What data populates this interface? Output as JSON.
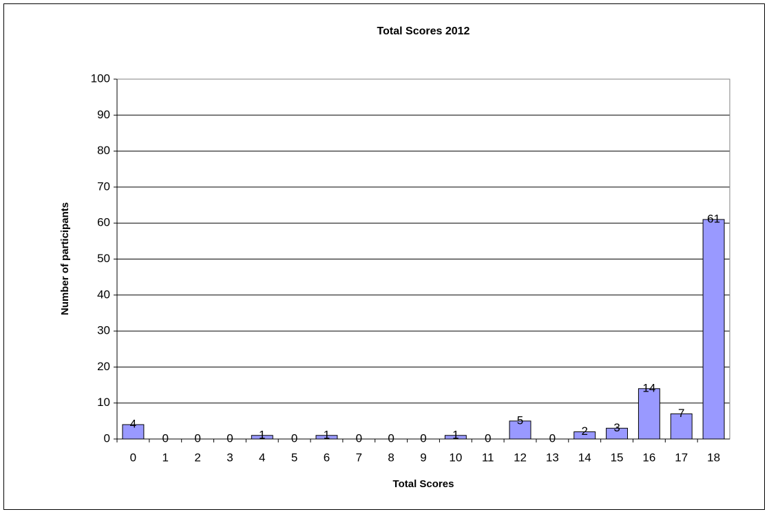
{
  "chart_data": {
    "type": "bar",
    "title": "Total Scores 2012",
    "x_label": "Total Scores",
    "y_label": "Number of participants",
    "categories": [
      "0",
      "1",
      "2",
      "3",
      "4",
      "5",
      "6",
      "7",
      "8",
      "9",
      "10",
      "11",
      "12",
      "13",
      "14",
      "15",
      "16",
      "17",
      "18"
    ],
    "values": [
      4,
      0,
      0,
      0,
      1,
      0,
      1,
      0,
      0,
      0,
      1,
      0,
      5,
      0,
      2,
      3,
      14,
      7,
      61
    ],
    "color": "#9999ff",
    "ylim": [
      0,
      100
    ],
    "yticks": [
      0,
      10,
      20,
      30,
      40,
      50,
      60,
      70,
      80,
      90,
      100
    ],
    "grid": true
  }
}
